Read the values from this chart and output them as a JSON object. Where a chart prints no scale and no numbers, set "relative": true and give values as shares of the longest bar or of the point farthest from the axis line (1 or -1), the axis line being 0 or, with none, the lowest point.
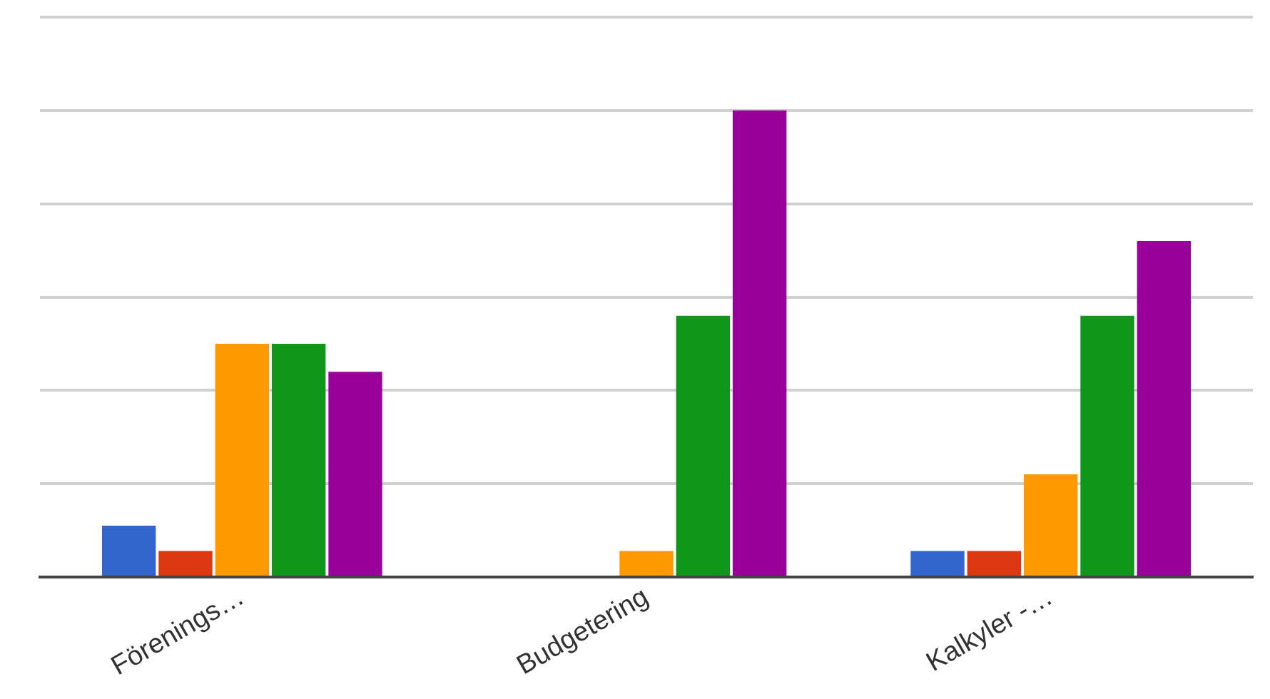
{
  "chart_data": {
    "type": "bar",
    "relative": true,
    "grid": "y",
    "legend": false,
    "categories": [
      "Förenings…",
      "Budgetering",
      "Kalkyler -…"
    ],
    "series": [
      {
        "color": "#3366cc",
        "values": [
          0.11,
          0,
          0.056
        ]
      },
      {
        "color": "#dc3912",
        "values": [
          0.056,
          0,
          0.056
        ]
      },
      {
        "color": "#ff9900",
        "values": [
          0.5,
          0.056,
          0.22
        ]
      },
      {
        "color": "#109618",
        "values": [
          0.5,
          0.56,
          0.56
        ]
      },
      {
        "color": "#990099",
        "values": [
          0.44,
          1,
          0.72
        ]
      }
    ]
  }
}
